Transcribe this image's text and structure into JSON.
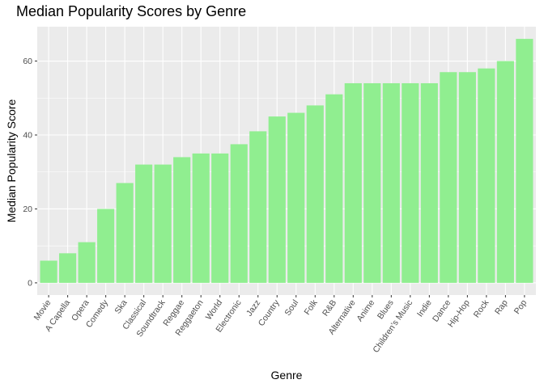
{
  "chart_data": {
    "type": "bar",
    "title": "Median Popularity Scores by Genre",
    "xlabel": "Genre",
    "ylabel": "Median Popularity Score",
    "categories": [
      "Movie",
      "A Capella",
      "Opera",
      "Comedy",
      "Ska",
      "Classical",
      "Soundtrack",
      "Reggae",
      "Reggaeton",
      "World",
      "Electronic",
      "Jazz",
      "Country",
      "Soul",
      "Folk",
      "R&B",
      "Alternative",
      "Anime",
      "Blues",
      "Children’s Music",
      "Indie",
      "Dance",
      "Hip-Hop",
      "Rock",
      "Rap",
      "Pop"
    ],
    "values": [
      6,
      8,
      11,
      20,
      27,
      32,
      32,
      34,
      35,
      35,
      37.5,
      41,
      45,
      46,
      48,
      51,
      54,
      54,
      54,
      54,
      54,
      57,
      57,
      58,
      60,
      66
    ],
    "ylim": [
      -3.3,
      69.3
    ],
    "yticks": [
      0,
      20,
      40,
      60
    ],
    "grid": true,
    "colors": {
      "bar": "#90EE90",
      "panel": "#EBEBEB",
      "grid": "#FFFFFF"
    }
  }
}
